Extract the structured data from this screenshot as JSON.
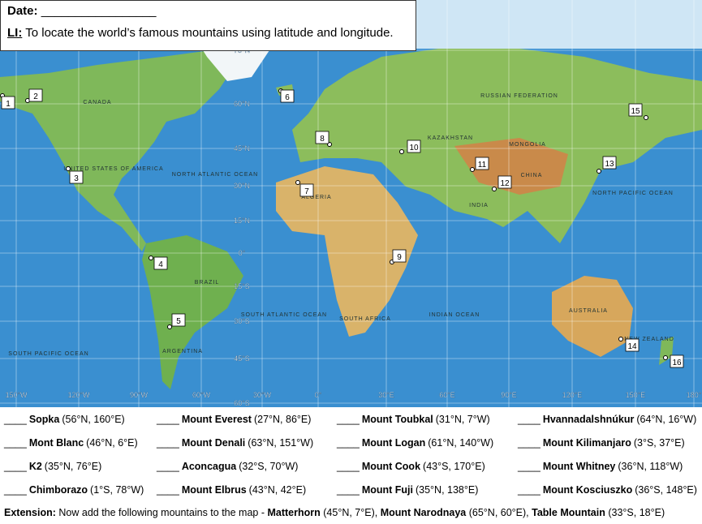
{
  "header": {
    "date_label": "Date:",
    "date_blank": "_________________",
    "li_label": "LI:",
    "li_text": "To locate the world’s famous mountains using latitude and longitude."
  },
  "map": {
    "latitudes": [
      "75°N",
      "60°N",
      "45°N",
      "30°N",
      "15°N",
      "0°",
      "15°S",
      "30°S",
      "45°S",
      "60°S"
    ],
    "longitudes": [
      "150°W",
      "120°W",
      "90°W",
      "60°W",
      "30°W",
      "0°",
      "30°E",
      "60°E",
      "90°E",
      "120°E",
      "150°E",
      "180°"
    ],
    "markers": [
      "1",
      "2",
      "3",
      "4",
      "5",
      "6",
      "7",
      "8",
      "9",
      "10",
      "11",
      "12",
      "13",
      "14",
      "15",
      "16"
    ],
    "regions": [
      "CANADA",
      "UNITED STATES OF AMERICA",
      "NORTH ATLANTIC OCEAN",
      "SOUTH ATLANTIC OCEAN",
      "BRAZIL",
      "ARGENTINA",
      "RUSSIAN FEDERATION",
      "KAZAKHSTAN",
      "MONGOLIA",
      "CHINA",
      "INDIA",
      "ALGERIA",
      "SOUTH AFRICA",
      "INDIAN OCEAN",
      "AUSTRALIA",
      "NEW ZEALAND",
      "NORTH PACIFIC OCEAN",
      "SOUTH PACIFIC OCEAN"
    ]
  },
  "mountains": [
    {
      "blank": "____",
      "name": "Sopka",
      "coords": "(56°N, 160°E)"
    },
    {
      "blank": "____",
      "name": "Mount Everest",
      "coords": "(27°N, 86°E)"
    },
    {
      "blank": "____",
      "name": "Mount Toubkal",
      "coords": "(31°N, 7°W)"
    },
    {
      "blank": "____",
      "name": "Hvannadalshnúkur",
      "coords": "(64°N, 16°W)"
    },
    {
      "blank": "____",
      "name": "Mont Blanc",
      "coords": "(46°N, 6°E)"
    },
    {
      "blank": "____",
      "name": "Mount Denali",
      "coords": "(63°N, 151°W)"
    },
    {
      "blank": "____",
      "name": "Mount Logan",
      "coords": "(61°N, 140°W)"
    },
    {
      "blank": "____",
      "name": "Mount Kilimanjaro",
      "coords": "(3°S, 37°E)"
    },
    {
      "blank": "____",
      "name": "K2",
      "coords": "(35°N, 76°E)"
    },
    {
      "blank": "____",
      "name": "Aconcagua",
      "coords": "(32°S, 70°W)"
    },
    {
      "blank": "____",
      "name": "Mount Cook",
      "coords": "(43°S, 170°E)"
    },
    {
      "blank": "____",
      "name": "Mount Whitney",
      "coords": "(36°N, 118°W)"
    },
    {
      "blank": "____",
      "name": "Chimborazo",
      "coords": "(1°S, 78°W)"
    },
    {
      "blank": "____",
      "name": "Mount Elbrus",
      "coords": "(43°N, 42°E)"
    },
    {
      "blank": "____",
      "name": "Mount Fuji",
      "coords": "(35°N, 138°E)"
    },
    {
      "blank": "____",
      "name": "Mount Kosciuszko",
      "coords": "(36°S, 148°E)"
    }
  ],
  "extension": {
    "label": "Extension:",
    "intro": "Now add the following mountains to the map - ",
    "items": [
      {
        "name": "Matterhorn",
        "coords": "(45°N, 7°E), "
      },
      {
        "name": "Mount Narodnaya",
        "coords": "(65°N, 60°E), "
      },
      {
        "name": "Table Mountain",
        "coords": "(33°S, 18°E)"
      }
    ]
  }
}
